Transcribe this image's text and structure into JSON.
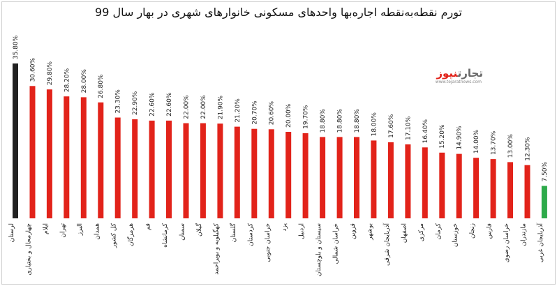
{
  "title": "تورم نقطه‌به‌نقطه اجاره‌بها واحدهای مسکونی خانوارهای شهری در بهار سال 99",
  "logo": {
    "name": "تجارت",
    "accent": "نیوز",
    "sub": "www.tejaratnews.com"
  },
  "colors": {
    "highest": "#222222",
    "default": "#e2231a",
    "lowest": "#2eaa4a"
  },
  "chart_data": {
    "type": "bar",
    "title": "تورم نقطه‌به‌نقطه اجاره‌بها واحدهای مسکونی خانوارهای شهری در بهار سال 99",
    "categories": [
      "لرستان",
      "چهارمحال و بختیاری",
      "ایلام",
      "تهران",
      "البرز",
      "همدان",
      "کل کشور",
      "هرمزگان",
      "قم",
      "کرمانشاه",
      "سمنان",
      "گیلان",
      "کهگیلویه و بویراحمد",
      "گلستان",
      "کردستان",
      "خراسان جنوبی",
      "یزد",
      "اردبیل",
      "سیستان و بلوچستان",
      "خراسان شمالی",
      "قزوین",
      "بوشهر",
      "آذربایجان شرقی",
      "اصفهان",
      "مرکزی",
      "کرمان",
      "خوزستان",
      "زنجان",
      "فارس",
      "خراسان رضوی",
      "مازندران",
      "آذربایجان غربی"
    ],
    "values": [
      35.8,
      30.6,
      29.8,
      28.2,
      28.0,
      26.8,
      23.3,
      22.9,
      22.6,
      22.6,
      22.0,
      22.0,
      21.9,
      21.2,
      20.7,
      20.6,
      20.0,
      19.7,
      18.8,
      18.8,
      18.8,
      18.0,
      17.6,
      17.1,
      16.4,
      15.2,
      14.9,
      14.0,
      13.7,
      13.0,
      12.3,
      7.5
    ],
    "value_labels": [
      "35.80%",
      "30.60%",
      "29.80%",
      "28.20%",
      "28.00%",
      "26.80%",
      "23.30%",
      "22.90%",
      "22.60%",
      "22.60%",
      "22.00%",
      "22.00%",
      "21.90%",
      "21.20%",
      "20.70%",
      "20.60%",
      "20.00%",
      "19.70%",
      "18.80%",
      "18.80%",
      "18.80%",
      "18.00%",
      "17.60%",
      "17.10%",
      "16.40%",
      "15.20%",
      "14.90%",
      "14.00%",
      "13.70%",
      "13.00%",
      "12.30%",
      "7.50%"
    ],
    "grid": false,
    "legend": "none"
  }
}
